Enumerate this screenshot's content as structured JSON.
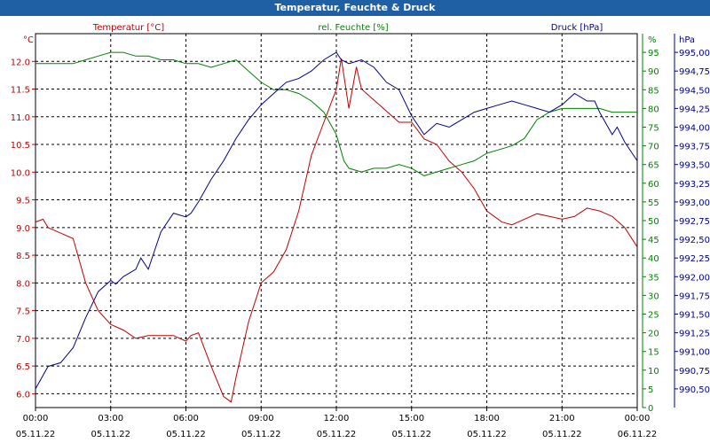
{
  "window": {
    "title": "Temperatur, Feuchte & Druck"
  },
  "chart_data": {
    "type": "line",
    "title": "Temperatur, Feuchte & Druck",
    "grid": true,
    "x_ticks": [
      {
        "x": 0,
        "time": "00:00",
        "date": "05.11.22"
      },
      {
        "x": 3,
        "time": "03:00",
        "date": "05.11.22"
      },
      {
        "x": 6,
        "time": "06:00",
        "date": "05.11.22"
      },
      {
        "x": 9,
        "time": "09:00",
        "date": "05.11.22"
      },
      {
        "x": 12,
        "time": "12:00",
        "date": "05.11.22"
      },
      {
        "x": 15,
        "time": "15:00",
        "date": "05.11.22"
      },
      {
        "x": 18,
        "time": "18:00",
        "date": "05.11.22"
      },
      {
        "x": 21,
        "time": "21:00",
        "date": "05.11.22"
      },
      {
        "x": 24,
        "time": "00:00",
        "date": "06.11.22"
      }
    ],
    "xlim": [
      0,
      24
    ],
    "axes": {
      "left": {
        "label": "Temperatur [°C]",
        "unit": "°C",
        "ylim": [
          5.75,
          12.5
        ],
        "ticks": [
          "6.0",
          "6.5",
          "7.0",
          "7.5",
          "8.0",
          "8.5",
          "9.0",
          "9.5",
          "10.0",
          "10.5",
          "11.0",
          "11.5",
          "12.0"
        ],
        "color": "#c00000"
      },
      "right1": {
        "label": "rel. Feuchte [%]",
        "unit": "%",
        "ylim": [
          0,
          100
        ],
        "ticks": [
          "0",
          "5",
          "10",
          "15",
          "20",
          "25",
          "30",
          "35",
          "40",
          "45",
          "50",
          "55",
          "60",
          "65",
          "70",
          "75",
          "80",
          "85",
          "90",
          "95"
        ],
        "color": "#008000"
      },
      "right2": {
        "label": "Druck [hPa]",
        "unit": "hPa",
        "ylim": [
          990.25,
          995.25
        ],
        "ticks": [
          "990,50",
          "990,75",
          "991,00",
          "991,25",
          "991,50",
          "991,75",
          "992,00",
          "992,25",
          "992,50",
          "992,75",
          "993,00",
          "993,25",
          "993,50",
          "993,75",
          "994,00",
          "994,25",
          "994,50",
          "994,75",
          "995,00"
        ],
        "color": "#00008b"
      }
    },
    "series": [
      {
        "name": "Temperatur [°C]",
        "axis": "left",
        "color": "#c00000",
        "x": [
          0,
          0.3,
          0.5,
          1,
          1.5,
          2,
          2.5,
          3,
          3.5,
          4,
          4.5,
          5,
          5.5,
          6,
          6.2,
          6.5,
          7,
          7.5,
          7.8,
          8,
          8.5,
          9,
          9.5,
          10,
          10.5,
          11,
          11.5,
          12,
          12.2,
          12.5,
          12.8,
          13,
          13.5,
          14,
          14.5,
          15,
          15.5,
          16,
          16.5,
          17,
          17.5,
          18,
          18.3,
          18.6,
          19,
          19.5,
          20,
          20.5,
          21,
          21.5,
          22,
          22.5,
          23,
          23.5,
          24
        ],
        "values": [
          9.1,
          9.15,
          9.0,
          8.9,
          8.8,
          8.0,
          7.5,
          7.25,
          7.15,
          7.0,
          7.05,
          7.05,
          7.05,
          6.95,
          7.05,
          7.1,
          6.5,
          5.95,
          5.85,
          6.3,
          7.3,
          8.0,
          8.2,
          8.6,
          9.3,
          10.3,
          10.9,
          11.5,
          12.05,
          11.15,
          11.9,
          11.5,
          11.3,
          11.1,
          10.9,
          10.9,
          10.6,
          10.5,
          10.2,
          10.0,
          9.7,
          9.3,
          9.2,
          9.1,
          9.05,
          9.15,
          9.25,
          9.2,
          9.15,
          9.2,
          9.35,
          9.3,
          9.2,
          9.0,
          8.65
        ]
      },
      {
        "name": "rel. Feuchte [%]",
        "axis": "right1",
        "color": "#008000",
        "x": [
          0,
          0.5,
          1,
          1.5,
          2,
          2.5,
          3,
          3.5,
          4,
          4.5,
          5,
          5.5,
          6,
          6.5,
          7,
          7.5,
          8,
          8.5,
          9,
          9.5,
          10,
          10.5,
          11,
          11.5,
          12,
          12.3,
          12.5,
          13,
          13.5,
          14,
          14.5,
          15,
          15.5,
          16,
          16.5,
          17,
          17.5,
          18,
          18.5,
          19,
          19.5,
          20,
          20.5,
          21,
          21.5,
          22,
          22.5,
          23,
          23.5,
          24
        ],
        "values": [
          92,
          92,
          92,
          92,
          93,
          94,
          95,
          95,
          94,
          94,
          93,
          93,
          92,
          92,
          91,
          92,
          93,
          90,
          87,
          85,
          85,
          84,
          82,
          79,
          73,
          66,
          64,
          63,
          64,
          64,
          65,
          64,
          62,
          63,
          64,
          65,
          66,
          68,
          69,
          70,
          72,
          77,
          79,
          80,
          80,
          80,
          80,
          79,
          79,
          79
        ]
      },
      {
        "name": "Druck [hPa]",
        "axis": "right2",
        "color": "#00008b",
        "x": [
          0,
          0.5,
          1,
          1.5,
          2,
          2.5,
          3,
          3.2,
          3.5,
          4,
          4.2,
          4.5,
          5,
          5.5,
          6,
          6.2,
          6.5,
          7,
          7.5,
          8,
          8.5,
          9,
          9.5,
          10,
          10.5,
          11,
          11.5,
          12,
          12.2,
          12.5,
          13,
          13.5,
          14,
          14.5,
          15,
          15.5,
          16,
          16.5,
          17,
          17.5,
          18,
          18.5,
          19,
          19.5,
          20,
          20.5,
          21,
          21.5,
          22,
          22.3,
          22.5,
          23,
          23.2,
          23.5,
          24
        ],
        "values": [
          990.5,
          990.8,
          990.85,
          991.05,
          991.45,
          991.8,
          991.95,
          991.9,
          992.0,
          992.1,
          992.25,
          992.1,
          992.6,
          992.85,
          992.8,
          992.85,
          993.0,
          993.3,
          993.55,
          993.85,
          994.1,
          994.3,
          994.45,
          994.6,
          994.65,
          994.75,
          994.9,
          995.0,
          994.9,
          994.85,
          994.9,
          994.8,
          994.6,
          994.5,
          994.15,
          993.9,
          994.05,
          994.0,
          994.1,
          994.2,
          994.25,
          994.3,
          994.35,
          994.3,
          994.25,
          994.2,
          994.3,
          994.45,
          994.35,
          994.35,
          994.2,
          993.9,
          994.0,
          993.8,
          993.55
        ]
      }
    ]
  }
}
